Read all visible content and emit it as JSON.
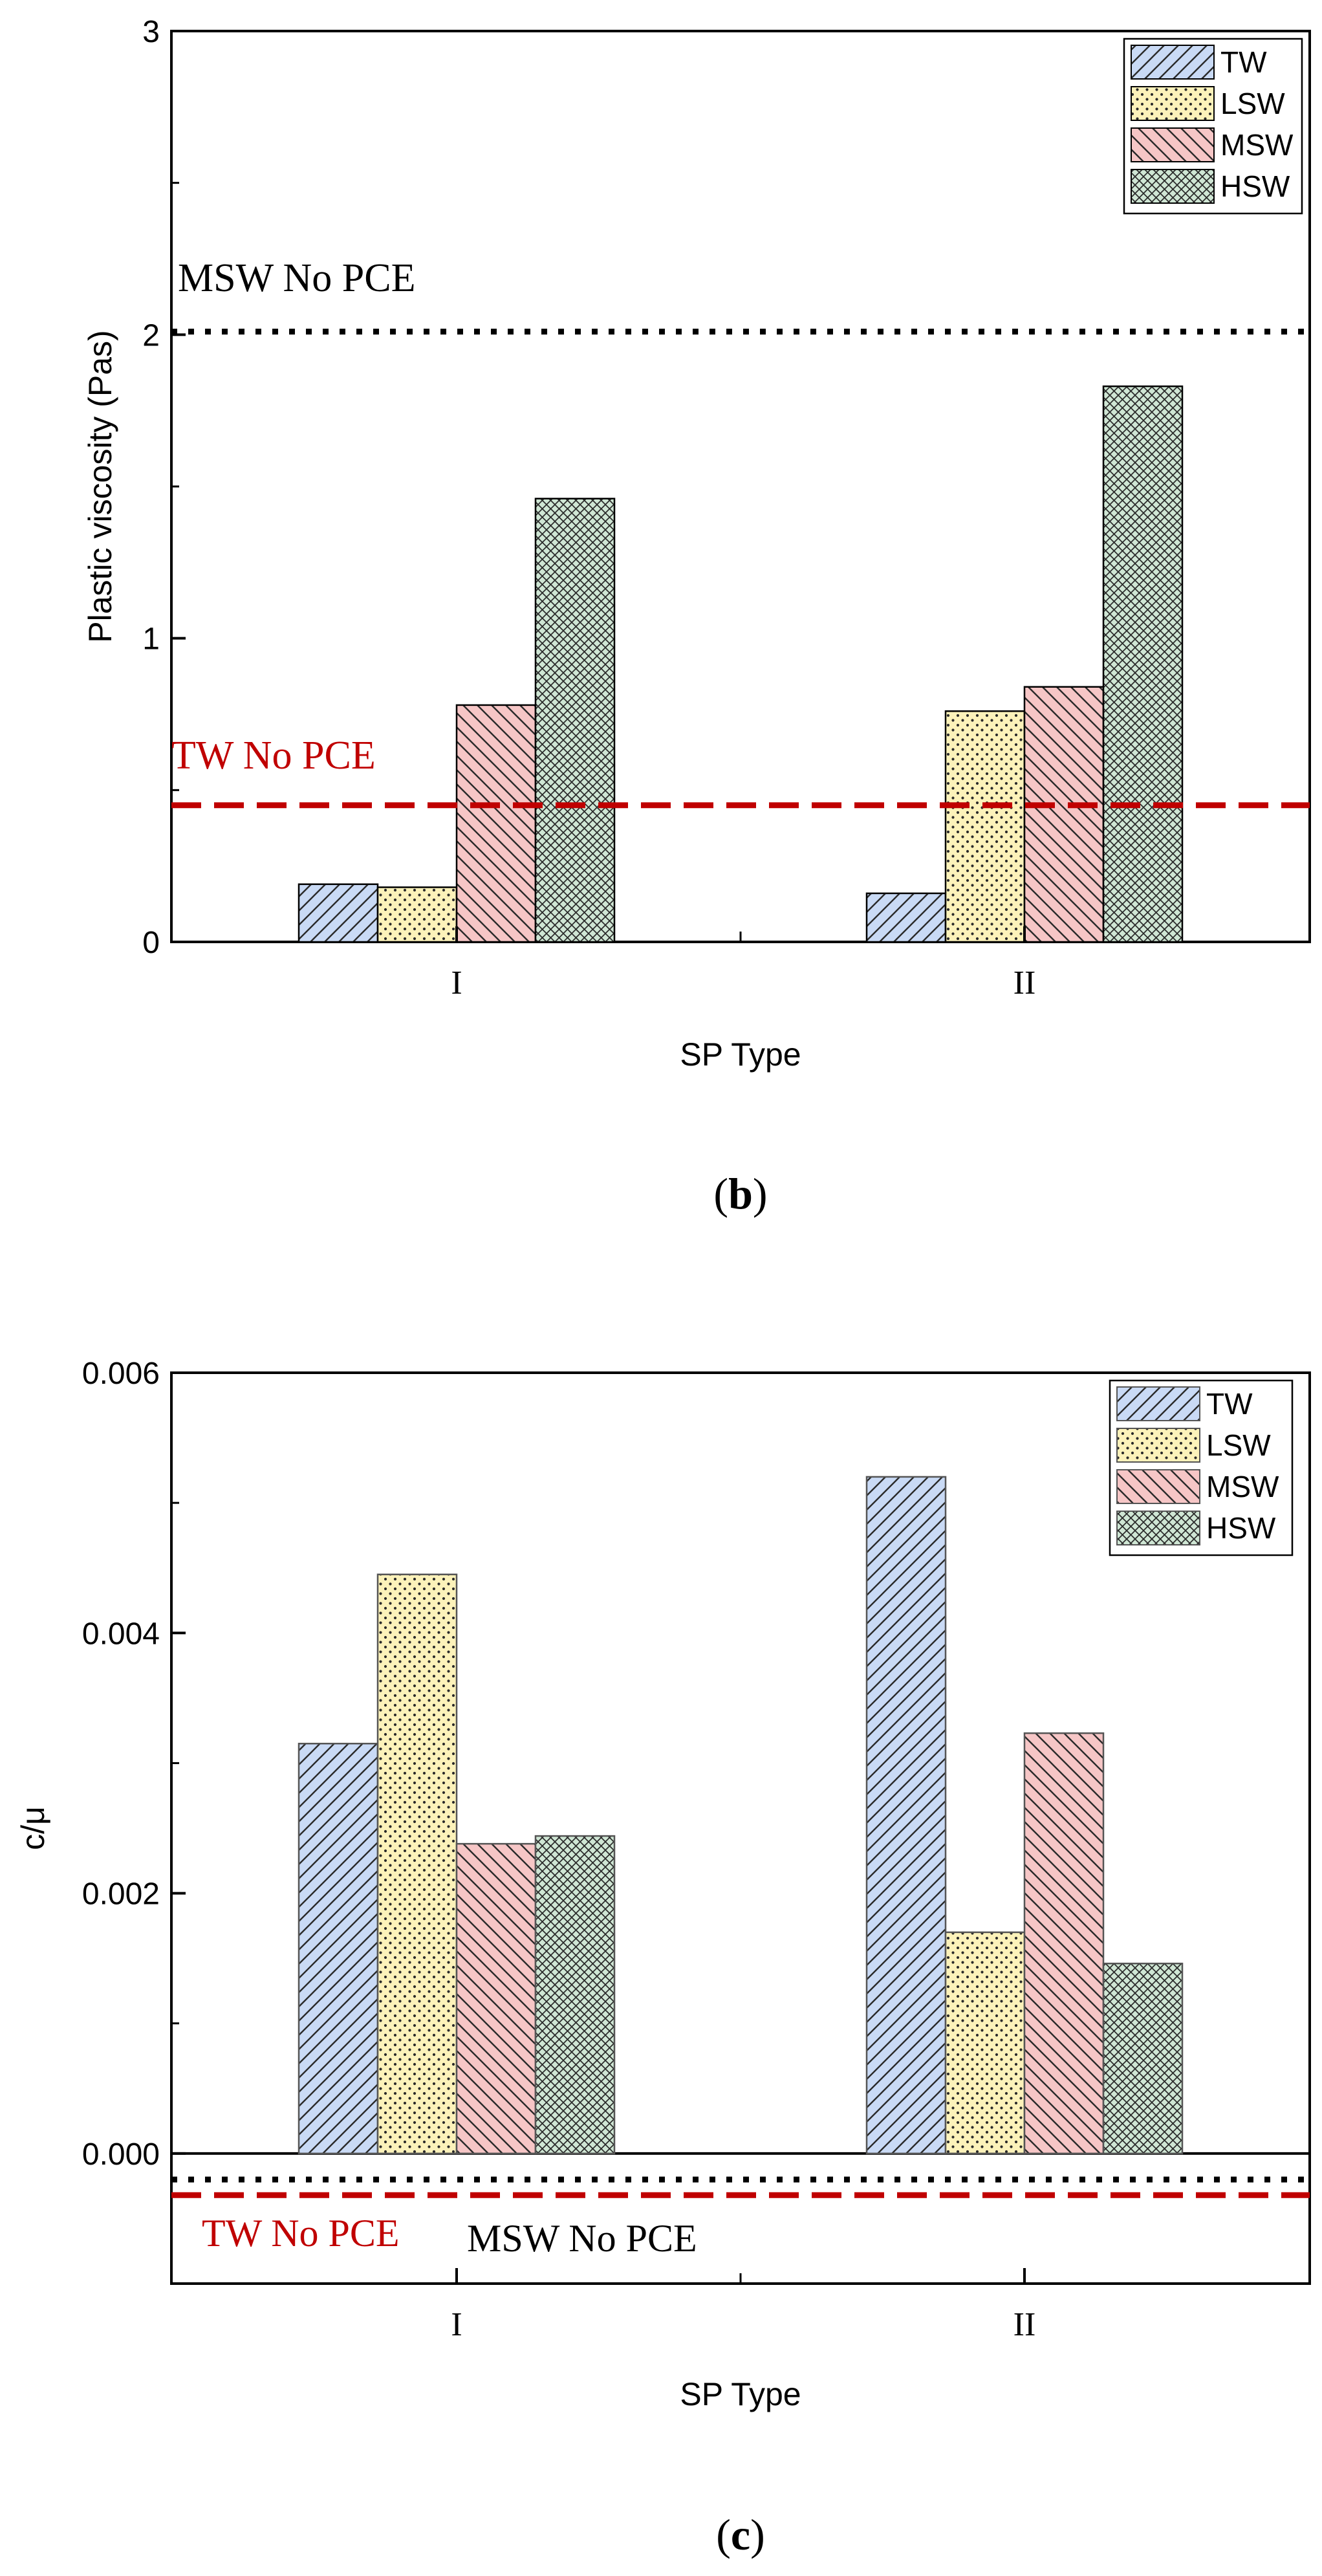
{
  "colors": {
    "TW_fill": "#c9daf5",
    "LSW_fill": "#fcf2ba",
    "MSW_fill": "#f6c6c6",
    "HSW_fill": "#cfe6d4",
    "ref_red": "#c00000",
    "ref_black": "#000000",
    "axis": "#000000"
  },
  "chart_data": [
    {
      "panel_label": "b",
      "type": "bar",
      "xlabel": "SP Type",
      "ylabel": "Plastic viscosity (Pas)",
      "categories": [
        "I",
        "II"
      ],
      "ylim": [
        0,
        3
      ],
      "yticks": [
        0,
        1,
        2,
        3
      ],
      "ytick_labels": [
        "0",
        "1",
        "2",
        "3"
      ],
      "legend_position": "top-right",
      "series": [
        {
          "name": "TW",
          "pattern": "diag-right",
          "values": [
            0.19,
            0.16
          ]
        },
        {
          "name": "LSW",
          "pattern": "dots",
          "values": [
            0.18,
            0.76
          ]
        },
        {
          "name": "MSW",
          "pattern": "diag-left",
          "values": [
            0.78,
            0.84
          ]
        },
        {
          "name": "HSW",
          "pattern": "crosshatch",
          "values": [
            1.46,
            1.83
          ]
        }
      ],
      "reference_lines": [
        {
          "label": "MSW No PCE",
          "value": 2.01,
          "style": "dotted",
          "color": "black"
        },
        {
          "label": "TW No PCE",
          "value": 0.45,
          "style": "dashed",
          "color": "red"
        }
      ]
    },
    {
      "panel_label": "c",
      "type": "bar",
      "xlabel": "SP Type",
      "ylabel": "c/μ",
      "categories": [
        "I",
        "II"
      ],
      "ylim": [
        -0.001,
        0.006
      ],
      "yticks": [
        0,
        0.002,
        0.004,
        0.006
      ],
      "ytick_labels": [
        "0.000",
        "0.002",
        "0.004",
        "0.006"
      ],
      "legend_position": "top-right",
      "series": [
        {
          "name": "TW",
          "pattern": "diag-right",
          "values": [
            0.00315,
            0.0052
          ]
        },
        {
          "name": "LSW",
          "pattern": "dots",
          "values": [
            0.00445,
            0.0017
          ]
        },
        {
          "name": "MSW",
          "pattern": "diag-left",
          "values": [
            0.00238,
            0.00323
          ]
        },
        {
          "name": "HSW",
          "pattern": "crosshatch",
          "values": [
            0.00244,
            0.00146
          ]
        }
      ],
      "reference_lines": [
        {
          "label": "MSW No PCE",
          "value": -0.0002,
          "style": "dotted",
          "color": "black"
        },
        {
          "label": "TW No PCE",
          "value": -0.00032,
          "style": "dashed",
          "color": "red"
        }
      ]
    }
  ]
}
